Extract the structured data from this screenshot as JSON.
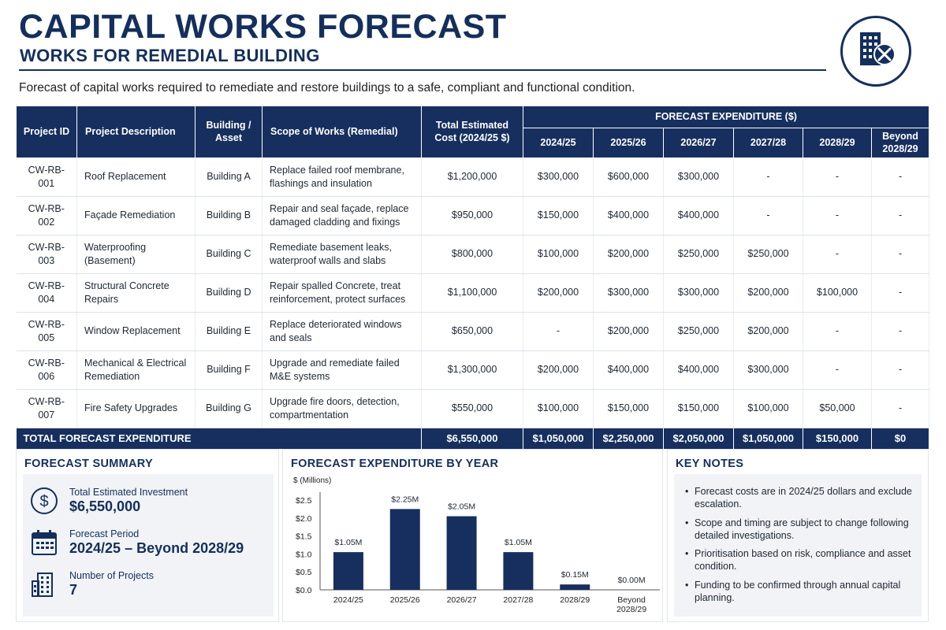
{
  "header": {
    "title": "CAPITAL WORKS FORECAST",
    "subtitle": "WORKS FOR REMEDIAL BUILDING",
    "logo_icon": "building-wrench-icon",
    "intro": "Forecast of capital works required to remediate and restore buildings to a safe, compliant and functional condition."
  },
  "table": {
    "headers": {
      "id": "Project ID",
      "description": "Project Description",
      "building": "Building / Asset",
      "scope": "Scope of Works (Remedial)",
      "total": "Total Estimated Cost (2024/25 $)",
      "forecast_group": "FORECAST EXPENDITURE ($)",
      "years": [
        "2024/25",
        "2025/26",
        "2026/27",
        "2027/28",
        "2028/29",
        "Beyond 2028/29"
      ]
    },
    "rows": [
      {
        "id": "CW-RB-001",
        "description": "Roof Replacement",
        "building": "Building A",
        "scope": "Replace failed roof membrane, flashings and insulation",
        "total": "$1,200,000",
        "years": [
          "$300,000",
          "$600,000",
          "$300,000",
          "-",
          "-",
          "-"
        ]
      },
      {
        "id": "CW-RB-002",
        "description": "Façade Remediation",
        "building": "Building B",
        "scope": "Repair and seal façade, replace damaged cladding and fixings",
        "total": "$950,000",
        "years": [
          "$150,000",
          "$400,000",
          "$400,000",
          "-",
          "-",
          "-"
        ]
      },
      {
        "id": "CW-RB-003",
        "description": "Waterproofing (Basement)",
        "building": "Building C",
        "scope": "Remediate basement leaks, waterproof walls and slabs",
        "total": "$800,000",
        "years": [
          "$100,000",
          "$200,000",
          "$250,000",
          "$250,000",
          "-",
          "-"
        ]
      },
      {
        "id": "CW-RB-004",
        "description": "Structural Concrete Repairs",
        "building": "Building D",
        "scope": "Repair spalled Concrete, treat reinforcement, protect surfaces",
        "total": "$1,100,000",
        "years": [
          "$200,000",
          "$300,000",
          "$300,000",
          "$200,000",
          "$100,000",
          "-"
        ]
      },
      {
        "id": "CW-RB-005",
        "description": "Window Replacement",
        "building": "Building E",
        "scope": "Replace deteriorated windows and seals",
        "total": "$650,000",
        "years": [
          "-",
          "$200,000",
          "$250,000",
          "$200,000",
          "-",
          "-"
        ]
      },
      {
        "id": "CW-RB-006",
        "description": "Mechanical & Electrical Remediation",
        "building": "Building F",
        "scope": "Upgrade and remediate failed M&E systems",
        "total": "$1,300,000",
        "years": [
          "$200,000",
          "$400,000",
          "$400,000",
          "$300,000",
          "-",
          "-"
        ]
      },
      {
        "id": "CW-RB-007",
        "description": "Fire Safety Upgrades",
        "building": "Building G",
        "scope": "Upgrade fire doors, detection, compartmentation",
        "total": "$550,000",
        "years": [
          "$100,000",
          "$150,000",
          "$150,000",
          "$100,000",
          "$50,000",
          "-"
        ]
      }
    ],
    "total_row": {
      "label": "TOTAL FORECAST EXPENDITURE",
      "total": "$6,550,000",
      "years": [
        "$1,050,000",
        "$2,250,000",
        "$2,050,000",
        "$1,050,000",
        "$150,000",
        "$0"
      ]
    }
  },
  "summary": {
    "title": "FORECAST SUMMARY",
    "items": [
      {
        "label": "Total Estimated Investment",
        "value": "$6,550,000",
        "icon": "dollar-icon"
      },
      {
        "label": "Forecast Period",
        "value": "2024/25 – Beyond 2028/29",
        "icon": "calendar-icon"
      },
      {
        "label": "Number of Projects",
        "value": "7",
        "icon": "building-icon"
      }
    ]
  },
  "chart_panel": {
    "title": "FORECAST EXPENDITURE BY YEAR"
  },
  "chart_data": {
    "type": "bar",
    "title": "FORECAST EXPENDITURE BY YEAR",
    "ylabel": "$ (Millions)",
    "categories": [
      "2024/25",
      "2025/26",
      "2026/27",
      "2027/28",
      "2028/29",
      "Beyond 2028/29"
    ],
    "values": [
      1.05,
      2.25,
      2.05,
      1.05,
      0.15,
      0.0
    ],
    "data_labels": [
      "$1.05M",
      "$2.25M",
      "$2.05M",
      "$1.05M",
      "$0.15M",
      "$0.00M"
    ],
    "y_ticks": [
      0.0,
      0.5,
      1.0,
      1.5,
      2.0,
      2.5
    ],
    "y_tick_labels": [
      "$0.0",
      "$0.5",
      "$1.0",
      "$1.5",
      "$2.0",
      "$2.5"
    ],
    "ylim": [
      0,
      2.5
    ],
    "grid": false,
    "bar_color": "#162f5e"
  },
  "notes": {
    "title": "KEY NOTES",
    "items": [
      "Forecast costs are in 2024/25 dollars and exclude escalation.",
      "Scope and timing are subject to change following detailed investigations.",
      "Prioritisation based on risk, compliance and asset condition.",
      "Funding to be confirmed through annual capital planning."
    ]
  },
  "colors": {
    "navy": "#162f5e",
    "panel_bg": "#f1f3f6"
  }
}
